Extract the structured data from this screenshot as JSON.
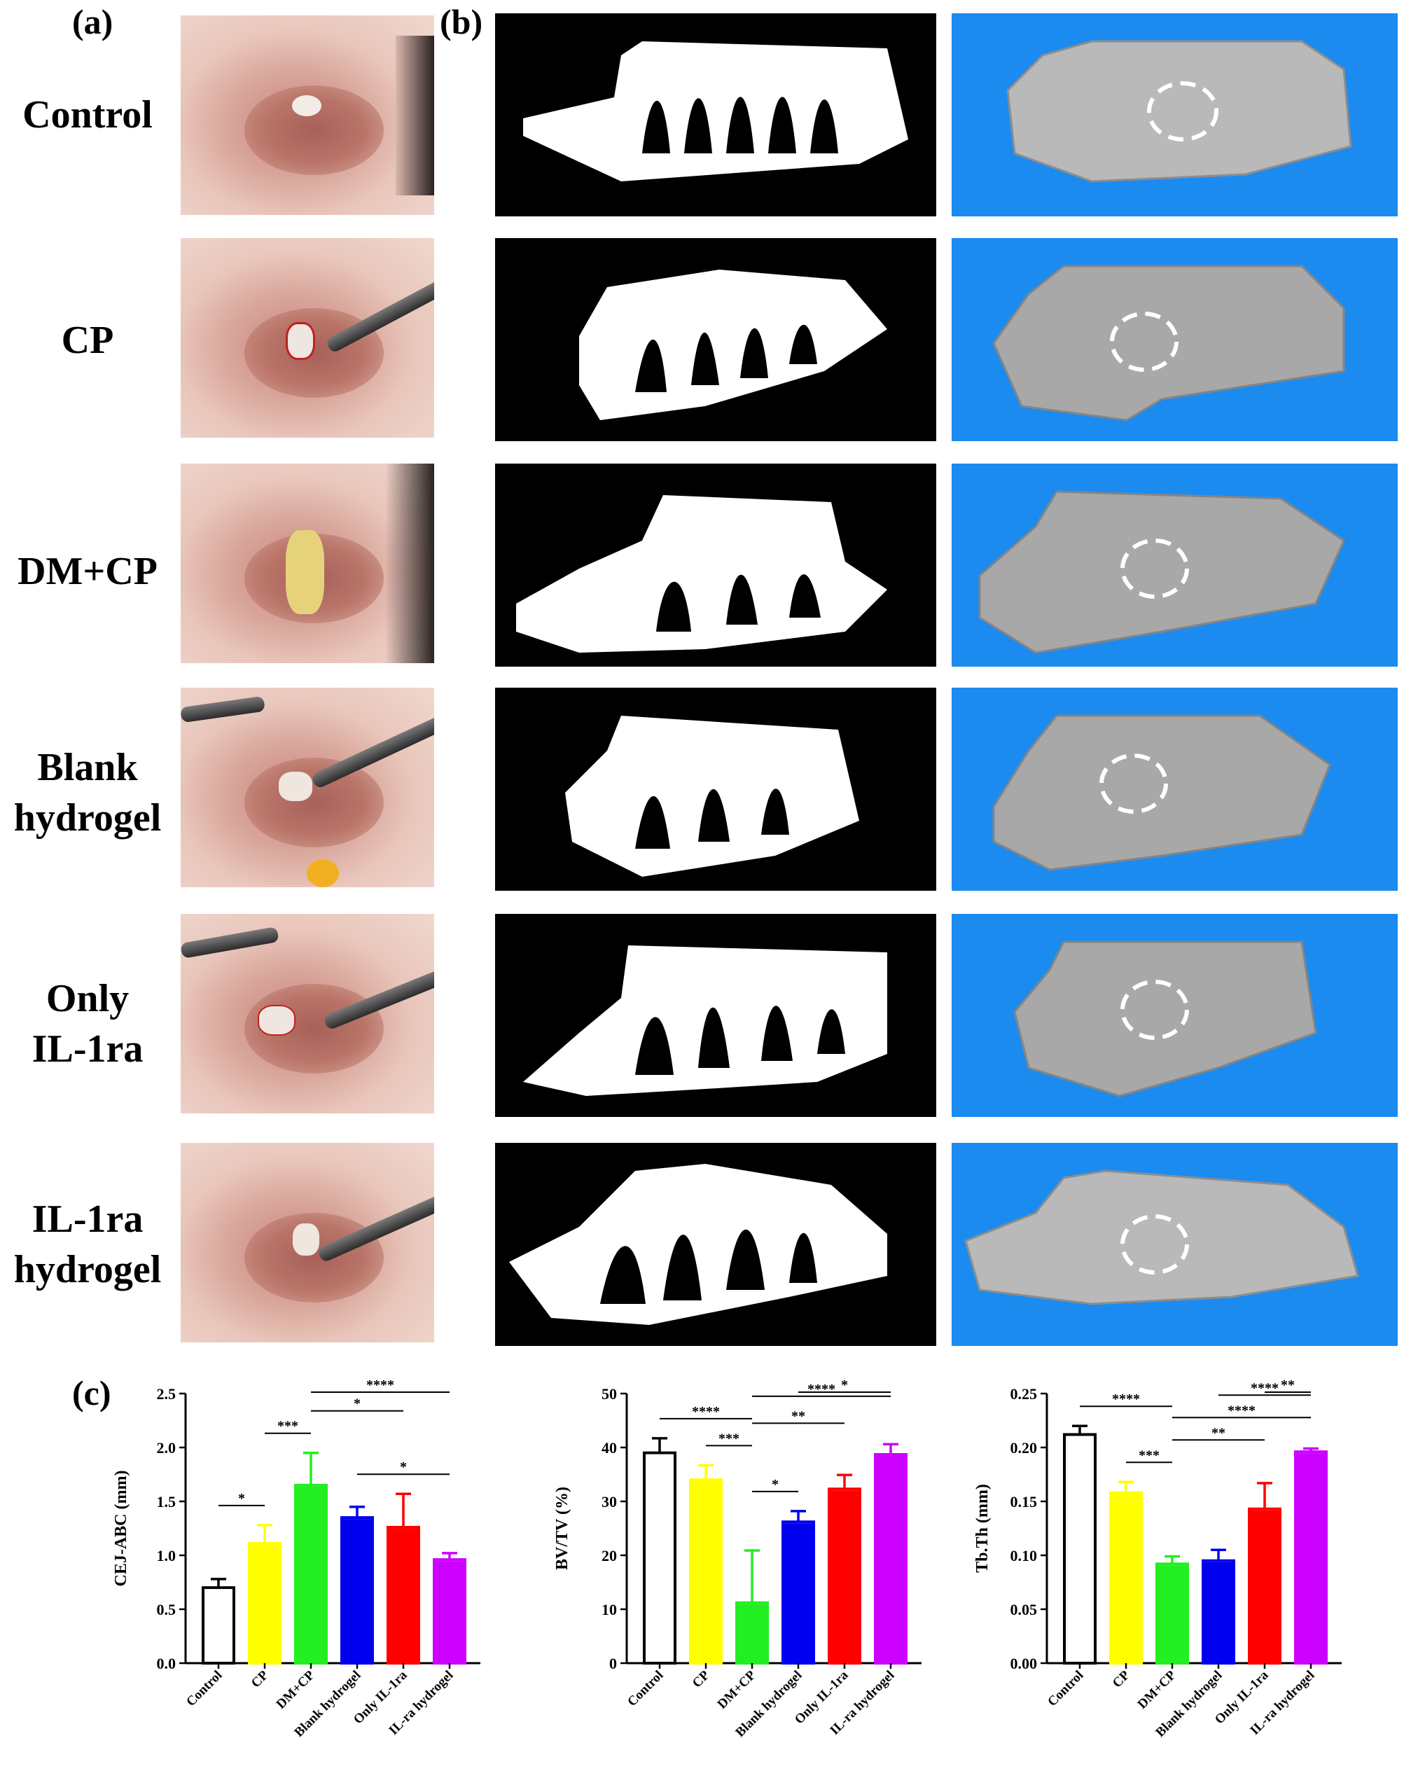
{
  "panels": {
    "a": "(a)",
    "b": "(b)",
    "c": "(c)"
  },
  "rows": [
    {
      "key": "control",
      "label_lines": [
        "Control"
      ]
    },
    {
      "key": "cp",
      "label_lines": [
        "CP"
      ]
    },
    {
      "key": "dmcp",
      "label_lines": [
        "DM+CP"
      ]
    },
    {
      "key": "blank",
      "label_lines": [
        "Blank",
        "hydrogel"
      ]
    },
    {
      "key": "onlyil",
      "label_lines": [
        "Only",
        "IL-1ra"
      ]
    },
    {
      "key": "ilhydrogel",
      "label_lines": [
        "IL-1ra",
        "hydrogel"
      ]
    }
  ],
  "colors": {
    "model_background": "#1b8bf0",
    "bars": [
      "#ffffff",
      "#ffff00",
      "#22ee22",
      "#0000ee",
      "#ff0000",
      "#cc00ff"
    ]
  },
  "chart_data": [
    {
      "type": "bar",
      "categories": [
        "Control",
        "CP",
        "DM+CP",
        "Blank hydrogel",
        "Only IL-1ra",
        "IL-ra hydrogel"
      ],
      "values": [
        0.7,
        1.11,
        1.65,
        1.35,
        1.26,
        0.96
      ],
      "errors": [
        0.08,
        0.17,
        0.3,
        0.1,
        0.31,
        0.06
      ],
      "ylabel": "CEJ-ABC (mm)",
      "ylim": [
        0,
        2.5
      ],
      "yticks": [
        "0.0",
        "0.5",
        "1.0",
        "1.5",
        "2.0",
        "2.5"
      ],
      "significance": [
        {
          "from": 0,
          "to": 1,
          "label": "*"
        },
        {
          "from": 1,
          "to": 2,
          "label": "***"
        },
        {
          "from": 2,
          "to": 4,
          "label": "*"
        },
        {
          "from": 2,
          "to": 5,
          "label": "****"
        },
        {
          "from": 3,
          "to": 5,
          "label": "*"
        }
      ]
    },
    {
      "type": "bar",
      "categories": [
        "Control",
        "CP",
        "DM+CP",
        "Blank hydrogel",
        "Only IL-1ra",
        "IL-ra hydrogel"
      ],
      "values": [
        39.0,
        34.0,
        11.2,
        26.2,
        32.3,
        38.7
      ],
      "errors": [
        2.7,
        2.7,
        9.7,
        2.0,
        2.6,
        1.9
      ],
      "ylabel": "BV/TV (%)",
      "ylim": [
        0,
        50
      ],
      "yticks": [
        "0",
        "10",
        "20",
        "30",
        "40",
        "50"
      ],
      "significance": [
        {
          "from": 0,
          "to": 2,
          "label": "****"
        },
        {
          "from": 1,
          "to": 2,
          "label": "***"
        },
        {
          "from": 2,
          "to": 3,
          "label": "*"
        },
        {
          "from": 2,
          "to": 4,
          "label": "**"
        },
        {
          "from": 2,
          "to": 5,
          "label": "****"
        },
        {
          "from": 3,
          "to": 5,
          "label": "*"
        }
      ]
    },
    {
      "type": "bar",
      "categories": [
        "Control",
        "CP",
        "DM+CP",
        "Blank hydrogel",
        "Only IL-1ra",
        "IL-ra hydrogel"
      ],
      "values": [
        0.212,
        0.158,
        0.092,
        0.095,
        0.143,
        0.196
      ],
      "errors": [
        0.008,
        0.01,
        0.007,
        0.01,
        0.024,
        0.003
      ],
      "ylabel": "Tb.Th (mm)",
      "ylim": [
        0,
        0.25
      ],
      "yticks": [
        "0.00",
        "0.05",
        "0.10",
        "0.15",
        "0.20",
        "0.25"
      ],
      "significance": [
        {
          "from": 0,
          "to": 2,
          "label": "****"
        },
        {
          "from": 1,
          "to": 2,
          "label": "***"
        },
        {
          "from": 2,
          "to": 4,
          "label": "**"
        },
        {
          "from": 2,
          "to": 5,
          "label": "****"
        },
        {
          "from": 3,
          "to": 5,
          "label": "****"
        },
        {
          "from": 4,
          "to": 5,
          "label": "**"
        }
      ]
    }
  ]
}
